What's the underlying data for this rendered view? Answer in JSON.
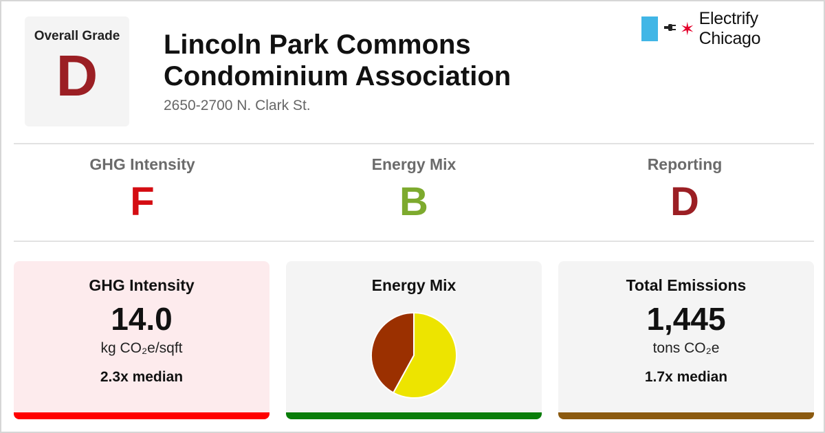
{
  "header": {
    "overall_label": "Overall Grade",
    "overall_grade": "D",
    "overall_color": "#9b1f24",
    "title_line1": "Lincoln Park Commons",
    "title_line2": "Condominium Association",
    "address": "2650-2700 N. Clark St."
  },
  "logo": {
    "text": "Electrify Chicago",
    "icons": [
      "plug-icon",
      "star-icon"
    ],
    "flag_color": "#41b6e6",
    "star_color": "#e4002b"
  },
  "grades": [
    {
      "label": "GHG Intensity",
      "grade": "F",
      "color": "#d40c12"
    },
    {
      "label": "Energy Mix",
      "grade": "B",
      "color": "#7daa2e"
    },
    {
      "label": "Reporting",
      "grade": "D",
      "color": "#9b1f24"
    }
  ],
  "panels": {
    "ghg": {
      "title": "GHG Intensity",
      "value": "14.0",
      "unit": "kg CO₂e/sqft",
      "median": "2.3x median",
      "bg_color": "#fdebed",
      "bar_color": "#ff0000"
    },
    "mix": {
      "title": "Energy Mix",
      "bg_color": "#f4f4f4",
      "bar_color": "#0a7d0a"
    },
    "emissions": {
      "title": "Total Emissions",
      "value": "1,445",
      "unit": "tons CO₂e",
      "median": "1.7x median",
      "bg_color": "#f4f4f4",
      "bar_color": "#8b5a10"
    }
  },
  "chart_data": {
    "type": "pie",
    "values": [
      58,
      42
    ],
    "colors": [
      "#ede400",
      "#9b3000"
    ],
    "start": "12 o'clock, clockwise",
    "title": ""
  }
}
